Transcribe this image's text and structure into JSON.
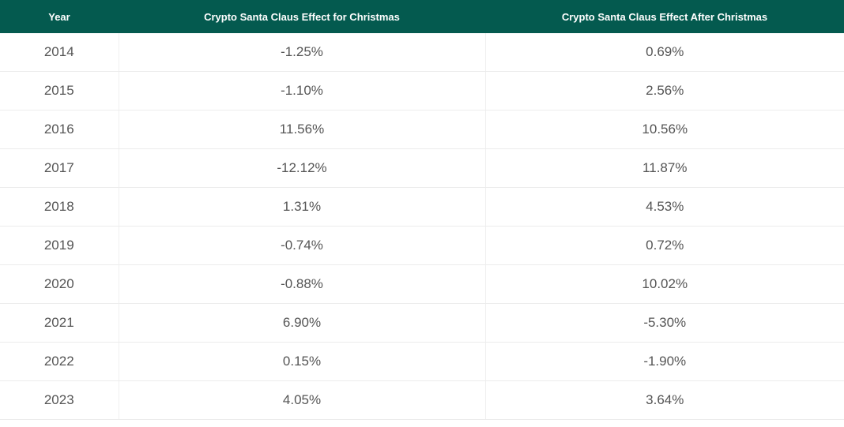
{
  "table": {
    "header": [
      "Year",
      "Crypto Santa Claus Effect for Christmas",
      "Crypto Santa Claus Effect After Christmas"
    ],
    "rows": [
      [
        "2014",
        "-1.25%",
        "0.69%"
      ],
      [
        "2015",
        "-1.10%",
        "2.56%"
      ],
      [
        "2016",
        "11.56%",
        "10.56%"
      ],
      [
        "2017",
        "-12.12%",
        "11.87%"
      ],
      [
        "2018",
        "1.31%",
        "4.53%"
      ],
      [
        "2019",
        "-0.74%",
        "0.72%"
      ],
      [
        "2020",
        "-0.88%",
        "10.02%"
      ],
      [
        "2021",
        "6.90%",
        "-5.30%"
      ],
      [
        "2022",
        "0.15%",
        "-1.90%"
      ],
      [
        "2023",
        "4.05%",
        "3.64%"
      ]
    ]
  }
}
